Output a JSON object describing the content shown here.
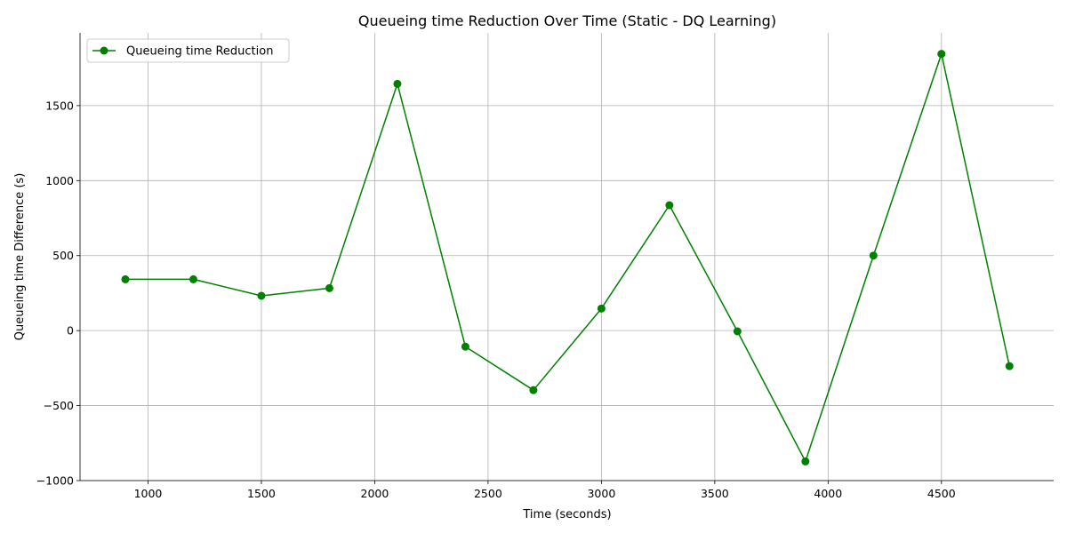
{
  "chart_data": {
    "type": "line",
    "title": "Queueing time Reduction Over Time  (Static - DQ Learning)",
    "xlabel": "Time (seconds)",
    "ylabel": "Queueing time Difference (s)",
    "xlim": [
      700,
      4995
    ],
    "ylim": [
      -1000,
      1985
    ],
    "xticks": [
      1000,
      1500,
      2000,
      2500,
      3000,
      3500,
      4000,
      4500
    ],
    "xtick_labels": [
      "1000",
      "1500",
      "2000",
      "2500",
      "3000",
      "3500",
      "4000",
      "4500"
    ],
    "yticks": [
      -1000,
      -500,
      0,
      500,
      1000,
      1500
    ],
    "ytick_labels": [
      "−1000",
      "−500",
      "0",
      "500",
      "1000",
      "1500"
    ],
    "grid": true,
    "legend_position": "top-left",
    "series": [
      {
        "name": "Queueing time Reduction",
        "color": "#008000",
        "marker": "circle",
        "x": [
          900,
          1200,
          1500,
          1800,
          2100,
          2400,
          2700,
          3000,
          3300,
          3600,
          3900,
          4200,
          4500,
          4800
        ],
        "y": [
          342,
          342,
          232,
          283,
          1645,
          -107,
          -397,
          147,
          836,
          -5,
          -872,
          500,
          1845,
          -237
        ]
      }
    ]
  }
}
